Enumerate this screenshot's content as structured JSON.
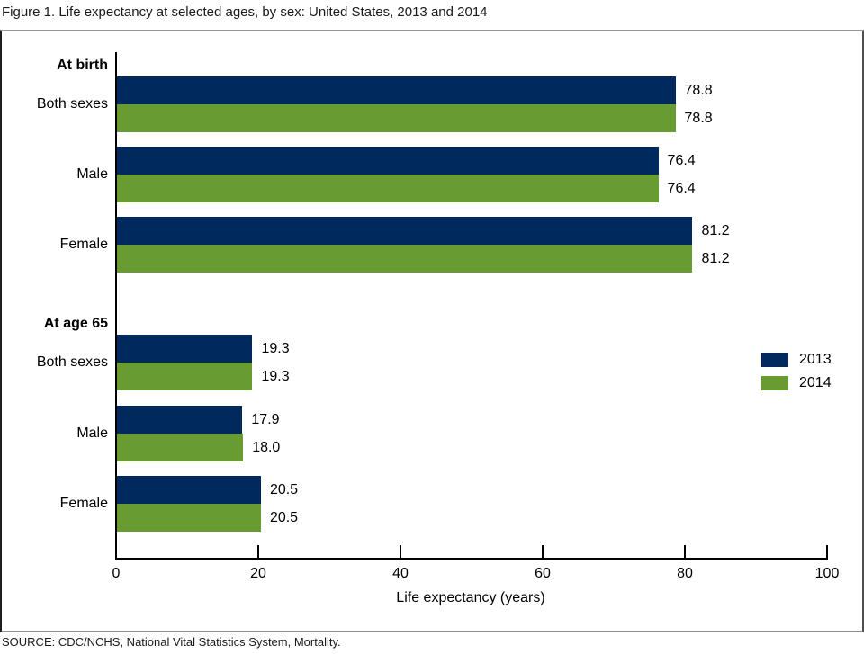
{
  "figure_title": "Figure 1. Life expectancy at selected ages, by sex: United States, 2013 and 2014",
  "source_note": "SOURCE: CDC/NCHS, National Vital Statistics System, Mortality.",
  "chart_data": {
    "type": "bar",
    "orientation": "horizontal",
    "title": "Life expectancy at selected ages, by sex: United States, 2013 and 2014",
    "xlabel": "Life expectancy (years)",
    "ylabel": "",
    "xlim": [
      0,
      100
    ],
    "xticks": [
      0,
      20,
      40,
      60,
      80,
      100
    ],
    "grid": false,
    "legend_position": "middle-right",
    "series": [
      {
        "name": "2013",
        "color": "#002a5e"
      },
      {
        "name": "2014",
        "color": "#699b33"
      }
    ],
    "sections": [
      {
        "header": "At birth",
        "rows": [
          {
            "category": "Both sexes",
            "values": [
              78.8,
              78.8
            ],
            "labels": [
              "78.8",
              "78.8"
            ]
          },
          {
            "category": "Male",
            "values": [
              76.4,
              76.4
            ],
            "labels": [
              "76.4",
              "76.4"
            ]
          },
          {
            "category": "Female",
            "values": [
              81.2,
              81.2
            ],
            "labels": [
              "81.2",
              "81.2"
            ]
          }
        ]
      },
      {
        "header": "At age 65",
        "rows": [
          {
            "category": "Both sexes",
            "values": [
              19.3,
              19.3
            ],
            "labels": [
              "19.3",
              "19.3"
            ]
          },
          {
            "category": "Male",
            "values": [
              17.9,
              18.0
            ],
            "labels": [
              "17.9",
              "18.0"
            ]
          },
          {
            "category": "Female",
            "values": [
              20.5,
              20.5
            ],
            "labels": [
              "20.5",
              "20.5"
            ]
          }
        ]
      }
    ]
  }
}
